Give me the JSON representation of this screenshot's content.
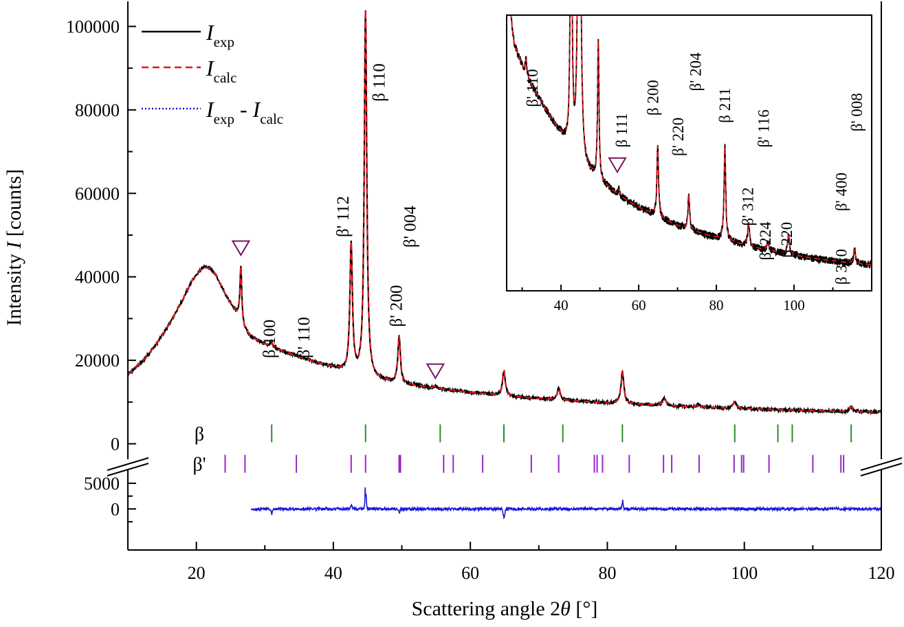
{
  "chart_data": {
    "type": "line",
    "title": "",
    "xlabel": "Scattering angle 2θ [°]",
    "xlabel_parts": {
      "prefix": "Scattering angle 2",
      "symbol": "θ",
      "unit": "[°]"
    },
    "ylabel": "Intensity I [counts]",
    "ylabel_parts": {
      "prefix": "Intensity ",
      "symbol": "I",
      "unit": "[counts]"
    },
    "xlim": [
      10,
      120
    ],
    "x_ticks": [
      20,
      40,
      60,
      80,
      100,
      120
    ],
    "x_tick_labels": [
      "20",
      "40",
      "60",
      "80",
      "100",
      "120"
    ],
    "ylim_upper": [
      -7000,
      106000
    ],
    "y_ticks_upper": [
      0,
      20000,
      40000,
      60000,
      80000,
      100000
    ],
    "y_tick_labels_upper": [
      "0",
      "20000",
      "40000",
      "60000",
      "80000",
      "100000"
    ],
    "ylim_lower": [
      -8000,
      7000
    ],
    "y_ticks_lower": [
      0,
      5000
    ],
    "y_tick_labels_lower": [
      "0",
      "5000"
    ],
    "axis_break": true,
    "background": [
      [
        10,
        16500
      ],
      [
        12,
        19500
      ],
      [
        14,
        23500
      ],
      [
        16,
        28500
      ],
      [
        18,
        34500
      ],
      [
        19.5,
        39500
      ],
      [
        21,
        42300
      ],
      [
        22,
        42000
      ],
      [
        23,
        40000
      ],
      [
        24,
        36500
      ],
      [
        25,
        33500
      ],
      [
        26,
        31000
      ],
      [
        26.4,
        30500
      ],
      [
        27,
        27500
      ],
      [
        28,
        25500
      ],
      [
        30,
        23800
      ],
      [
        32,
        22500
      ],
      [
        35,
        20800
      ],
      [
        38,
        19200
      ],
      [
        40,
        18200
      ],
      [
        42,
        17000
      ],
      [
        44,
        16000
      ],
      [
        46,
        15300
      ],
      [
        50,
        14400
      ],
      [
        55,
        13200
      ],
      [
        60,
        12300
      ],
      [
        65,
        11500
      ],
      [
        70,
        10800
      ],
      [
        75,
        10300
      ],
      [
        80,
        9800
      ],
      [
        85,
        9400
      ],
      [
        90,
        9000
      ],
      [
        95,
        8700
      ],
      [
        100,
        8400
      ],
      [
        105,
        8150
      ],
      [
        110,
        7950
      ],
      [
        115,
        7750
      ],
      [
        120,
        7600
      ]
    ],
    "peaks": [
      {
        "x": 26.5,
        "height": 12500,
        "w": 0.15
      },
      {
        "x": 31.0,
        "height": 1200,
        "w": 0.25
      },
      {
        "x": 42.6,
        "height": 30800,
        "w": 0.22
      },
      {
        "x": 44.7,
        "height": 87900,
        "w": 0.22
      },
      {
        "x": 49.6,
        "height": 11200,
        "w": 0.22
      },
      {
        "x": 54.9,
        "height": 500,
        "w": 0.3
      },
      {
        "x": 64.9,
        "height": 5800,
        "w": 0.25
      },
      {
        "x": 72.9,
        "height": 2800,
        "w": 0.25
      },
      {
        "x": 82.2,
        "height": 7600,
        "w": 0.25
      },
      {
        "x": 88.3,
        "height": 1800,
        "w": 0.3
      },
      {
        "x": 93.3,
        "height": 700,
        "w": 0.3
      },
      {
        "x": 98.6,
        "height": 1500,
        "w": 0.3
      },
      {
        "x": 115.6,
        "height": 1100,
        "w": 0.3
      }
    ],
    "series": [
      {
        "name": "I_exp",
        "label": "I",
        "sub": "exp",
        "color": "#000000",
        "style": "solid"
      },
      {
        "name": "I_calc",
        "label": "I",
        "sub": "calc",
        "color": "#e8131b",
        "style": "dashed"
      },
      {
        "name": "I_exp - I_calc",
        "label": "I",
        "sub": "exp",
        "label2": "I",
        "sub2": "calc",
        "color": "#1717d8",
        "style": "dotted"
      }
    ],
    "legend_minus": " - ",
    "legend_position": "top-left",
    "difference_start": 28,
    "difference_features": [
      {
        "x": 44.7,
        "amp": 4500
      },
      {
        "x": 42.6,
        "amp": 800
      },
      {
        "x": 64.9,
        "amp": -2800
      },
      {
        "x": 82.2,
        "amp": 1800
      },
      {
        "x": 31.0,
        "amp": -1200
      },
      {
        "x": 49.6,
        "amp": -800
      }
    ],
    "markers": [
      {
        "x": 26.5,
        "intensity": 47000
      },
      {
        "x": 54.9,
        "intensity": 17500
      }
    ],
    "reflection_labels": [
      {
        "text": "β 100",
        "x": 31.5,
        "y": 20500
      },
      {
        "text": "β' 110",
        "x": 36.5,
        "y": 20500
      },
      {
        "text": "β' 112",
        "x": 42.2,
        "y": 49500
      },
      {
        "text": "β 110",
        "x": 47.5,
        "y": 82000
      },
      {
        "text": "β' 200",
        "x": 50.0,
        "y": 28000
      },
      {
        "text": "β' 004",
        "x": 52.0,
        "y": 47000
      }
    ],
    "tick_marks": [
      {
        "label": "β",
        "color": "#2b8a2b",
        "y_center": 2500,
        "positions": [
          31.0,
          44.7,
          55.6,
          64.9,
          73.5,
          82.2,
          98.6,
          104.9,
          107.0,
          115.6
        ]
      },
      {
        "label": "β'",
        "color": "#9526c8",
        "y_center": -4800,
        "positions": [
          24.2,
          27.1,
          34.6,
          42.6,
          44.7,
          49.6,
          49.8,
          56.1,
          57.5,
          61.8,
          68.9,
          72.9,
          78.1,
          78.5,
          79.3,
          83.2,
          88.2,
          89.4,
          93.4,
          98.5,
          99.6,
          99.9,
          103.6,
          110.0,
          114.1,
          114.5
        ]
      }
    ],
    "inset": {
      "xlim": [
        26,
        120
      ],
      "ylim": [
        5500,
        28000
      ],
      "x_ticks": [
        40,
        60,
        80,
        100
      ],
      "x_tick_labels": [
        "40",
        "60",
        "80",
        "100"
      ],
      "marker": {
        "x": 54.5,
        "intensity": 15800
      },
      "labels": [
        {
          "text": "β' 110",
          "x": 34.0,
          "y": 20500
        },
        {
          "text": "β 111",
          "x": 57.0,
          "y": 17200
        },
        {
          "text": "β 200",
          "x": 65.0,
          "y": 19800
        },
        {
          "text": "β' 220",
          "x": 71.5,
          "y": 16500
        },
        {
          "text": "β' 204",
          "x": 76.0,
          "y": 21800
        },
        {
          "text": "β 211",
          "x": 83.5,
          "y": 19200
        },
        {
          "text": "β' 312",
          "x": 89.5,
          "y": 10800
        },
        {
          "text": "β' 116",
          "x": 93.5,
          "y": 17200
        },
        {
          "text": "β' 224",
          "x": 94.0,
          "y": 8000
        },
        {
          "text": "β 220",
          "x": 99.5,
          "y": 8200
        },
        {
          "text": "β 310",
          "x": 113.5,
          "y": 6000
        },
        {
          "text": "β' 400",
          "x": 113.5,
          "y": 12000
        },
        {
          "text": "β' 008",
          "x": 117.5,
          "y": 18500
        }
      ]
    }
  }
}
